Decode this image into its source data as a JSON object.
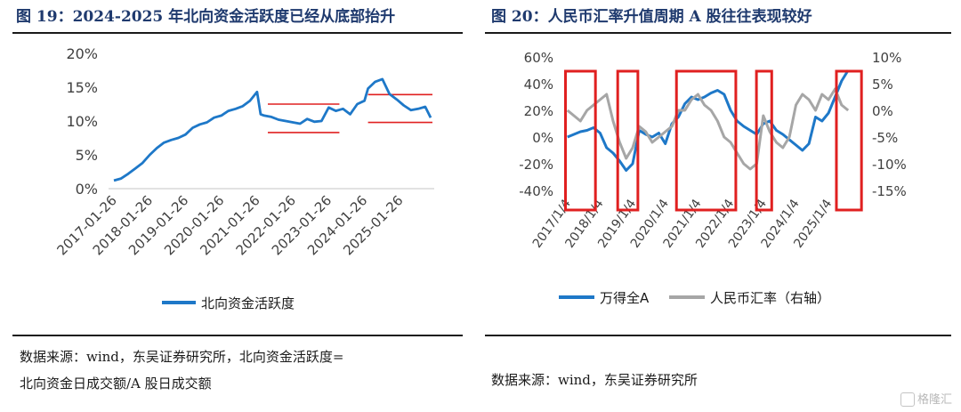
{
  "left": {
    "title": "图 19：2024-2025 年北向资金活跃度已经从底部抬升",
    "source_line1": "数据来源：wind，东吴证券研究所，北向资金活跃度=",
    "source_line2": "北向资金日成交额/A 股日成交额",
    "chart_data": {
      "type": "line",
      "title": "",
      "xlabel": "",
      "ylabel": "",
      "y_unit": "%",
      "ylim": [
        0,
        20
      ],
      "yticks": [
        "0%",
        "5%",
        "10%",
        "15%",
        "20%"
      ],
      "xticks": [
        "2017-01-26",
        "2018-01-26",
        "2019-01-26",
        "2020-01-26",
        "2021-01-26",
        "2022-01-26",
        "2023-01-26",
        "2024-01-26",
        "2025-01-26"
      ],
      "grid": false,
      "legend": "bottom",
      "series": [
        {
          "name": "北向资金活跃度",
          "color": "#1e78c8",
          "x": [
            2017.0,
            2017.2,
            2017.4,
            2017.6,
            2017.8,
            2018.0,
            2018.2,
            2018.4,
            2018.6,
            2018.8,
            2019.0,
            2019.2,
            2019.4,
            2019.6,
            2019.8,
            2020.0,
            2020.2,
            2020.4,
            2020.6,
            2020.8,
            2021.0,
            2021.1,
            2021.2,
            2021.4,
            2021.6,
            2021.8,
            2022.0,
            2022.2,
            2022.4,
            2022.6,
            2022.8,
            2023.0,
            2023.2,
            2023.4,
            2023.6,
            2023.8,
            2024.0,
            2024.1,
            2024.3,
            2024.5,
            2024.7,
            2024.9,
            2025.1,
            2025.3,
            2025.5,
            2025.7,
            2025.85
          ],
          "values": [
            1.2,
            1.5,
            2.2,
            3.0,
            3.8,
            5.0,
            6.0,
            6.8,
            7.2,
            7.5,
            8.0,
            9.0,
            9.5,
            9.8,
            10.5,
            10.8,
            11.5,
            11.8,
            12.2,
            13.0,
            14.3,
            11.0,
            10.8,
            10.6,
            10.2,
            10.0,
            9.8,
            9.6,
            10.3,
            9.9,
            10.0,
            12.0,
            11.5,
            11.8,
            11.0,
            12.5,
            13.0,
            14.8,
            15.8,
            16.2,
            14.0,
            13.2,
            12.3,
            11.6,
            11.8,
            12.1,
            10.5
          ]
        }
      ],
      "reference_lines": [
        {
          "value": 12.5,
          "x_from": 2021.3,
          "x_to": 2023.3
        },
        {
          "value": 8.3,
          "x_from": 2021.3,
          "x_to": 2023.3
        },
        {
          "value": 13.9,
          "x_from": 2024.1,
          "x_to": 2025.9
        },
        {
          "value": 9.8,
          "x_from": 2024.1,
          "x_to": 2025.9
        }
      ],
      "reference_color": "#e02020"
    }
  },
  "right": {
    "title": "图 20：人民币汇率升值周期 A 股往往表现较好",
    "source_line": "数据来源：wind，东吴证券研究所",
    "chart_data": {
      "type": "line",
      "title": "",
      "xlabel": "",
      "ylabel": "",
      "ylim_left": [
        -40,
        60
      ],
      "yticks_left": [
        "-40%",
        "-20%",
        "0%",
        "20%",
        "40%",
        "60%"
      ],
      "ylim_right": [
        -15,
        10
      ],
      "yticks_right": [
        "-15%",
        "-10%",
        "-5%",
        "0%",
        "5%",
        "10%"
      ],
      "xticks": [
        "2017/1/4",
        "2018/1/4",
        "2019/1/4",
        "2020/1/4",
        "2021/1/4",
        "2022/1/4",
        "2023/1/4",
        "2024/1/4",
        "2025/1/4"
      ],
      "grid": false,
      "legend": "bottom",
      "series": [
        {
          "name": "万得全A",
          "axis": "left",
          "color": "#1e78c8",
          "x": [
            2017.0,
            2017.2,
            2017.4,
            2017.6,
            2017.8,
            2018.0,
            2018.2,
            2018.4,
            2018.6,
            2018.8,
            2019.0,
            2019.2,
            2019.4,
            2019.6,
            2019.8,
            2020.0,
            2020.2,
            2020.4,
            2020.6,
            2020.8,
            2021.0,
            2021.2,
            2021.4,
            2021.6,
            2021.8,
            2022.0,
            2022.2,
            2022.4,
            2022.6,
            2022.8,
            2023.0,
            2023.2,
            2023.4,
            2023.6,
            2023.8,
            2024.0,
            2024.2,
            2024.4,
            2024.6,
            2024.8,
            2025.0,
            2025.2,
            2025.4,
            2025.6
          ],
          "values": [
            0,
            2,
            4,
            5,
            7,
            3,
            -8,
            -12,
            -18,
            -25,
            -20,
            5,
            2,
            0,
            3,
            -5,
            10,
            15,
            25,
            30,
            28,
            30,
            33,
            35,
            32,
            20,
            12,
            8,
            5,
            2,
            10,
            12,
            5,
            2,
            -2,
            -6,
            -10,
            -5,
            15,
            12,
            18,
            30,
            42,
            50
          ]
        },
        {
          "name": "人民币汇率（右轴）",
          "axis": "right",
          "color": "#a6a6a6",
          "x": [
            2017.0,
            2017.2,
            2017.4,
            2017.6,
            2017.8,
            2018.0,
            2018.2,
            2018.4,
            2018.6,
            2018.8,
            2019.0,
            2019.2,
            2019.4,
            2019.6,
            2019.8,
            2020.0,
            2020.2,
            2020.4,
            2020.6,
            2020.8,
            2021.0,
            2021.2,
            2021.4,
            2021.6,
            2021.8,
            2022.0,
            2022.2,
            2022.4,
            2022.6,
            2022.8,
            2023.0,
            2023.2,
            2023.4,
            2023.6,
            2023.8,
            2024.0,
            2024.2,
            2024.4,
            2024.6,
            2024.8,
            2025.0,
            2025.2,
            2025.4,
            2025.6
          ],
          "values": [
            0,
            -1,
            -2,
            0,
            1,
            2,
            3,
            -2,
            -6,
            -9,
            -7,
            -3,
            -4,
            -6,
            -5,
            -4,
            -3,
            0,
            0,
            2,
            3,
            1,
            0,
            -2,
            -5,
            -6,
            -8,
            -10,
            -11,
            -10,
            -1,
            -4,
            -6,
            -7,
            -5,
            1,
            3,
            2,
            0,
            3,
            2,
            4,
            1,
            0
          ]
        }
      ],
      "highlight_periods": [
        {
          "x_from": 2017.05,
          "x_to": 2017.75
        },
        {
          "x_from": 2018.65,
          "x_to": 2019.05
        },
        {
          "x_from": 2020.45,
          "x_to": 2022.05
        },
        {
          "x_from": 2022.9,
          "x_to": 2023.15
        },
        {
          "x_from": 2025.35,
          "x_to": 2025.9
        }
      ],
      "highlight_color": "#e02020"
    }
  }
}
